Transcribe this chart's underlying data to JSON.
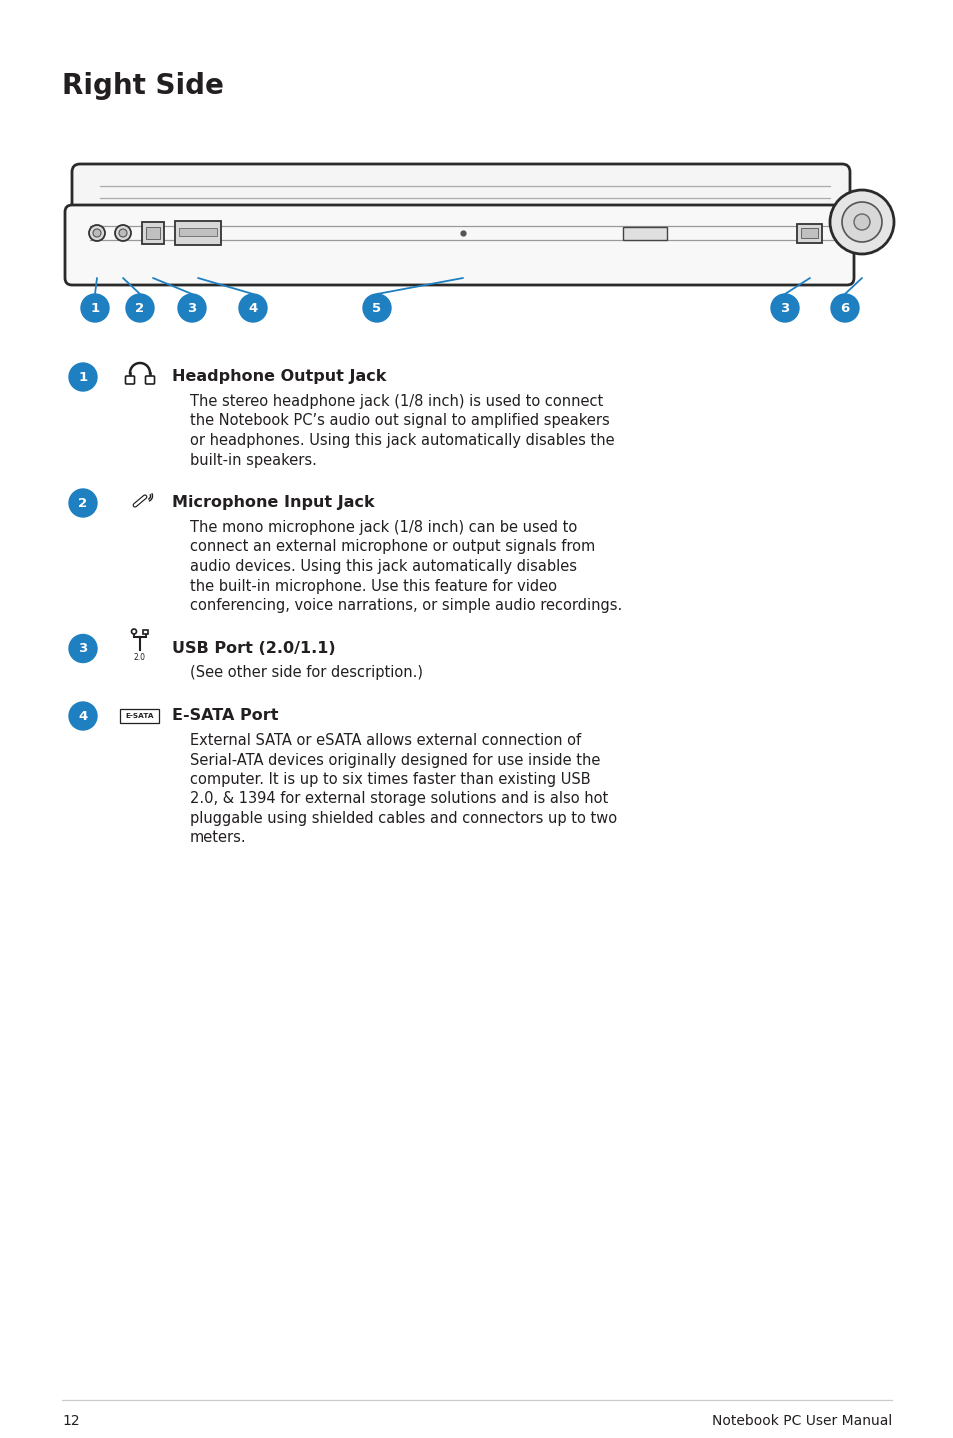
{
  "title": "Right Side",
  "bg_color": "#ffffff",
  "text_color": "#231f20",
  "blue": "#1e7fc1",
  "page_number": "12",
  "footer_text": "Notebook PC User Manual",
  "items": [
    {
      "num": "1",
      "icon": "headphone",
      "heading": "Headphone Output Jack",
      "body": "The stereo headphone jack (1/8 inch) is used to connect\nthe Notebook PC’s audio out signal to amplified speakers\nor headphones. Using this jack automatically disables the\nbuilt-in speakers."
    },
    {
      "num": "2",
      "icon": "mic",
      "heading": "Microphone Input Jack",
      "body": "The mono microphone jack (1/8 inch) can be used to\nconnect an external microphone or output signals from\naudio devices. Using this jack automatically disables\nthe built-in microphone. Use this feature for video\nconferencing, voice narrations, or simple audio recordings."
    },
    {
      "num": "3",
      "icon": "usb",
      "heading": "USB Port (2.0/1.1)",
      "body": "(See other side for description.)"
    },
    {
      "num": "4",
      "icon": "esata",
      "heading": "E-SATA Port",
      "body": "External SATA or eSATA allows external connection of\nSerial-ATA devices originally designed for use inside the\ncomputer. It is up to six times faster than existing USB\n2.0, & 1394 for external storage solutions and is also hot\npluggable using shielded cables and connectors up to two\nmeters."
    }
  ]
}
